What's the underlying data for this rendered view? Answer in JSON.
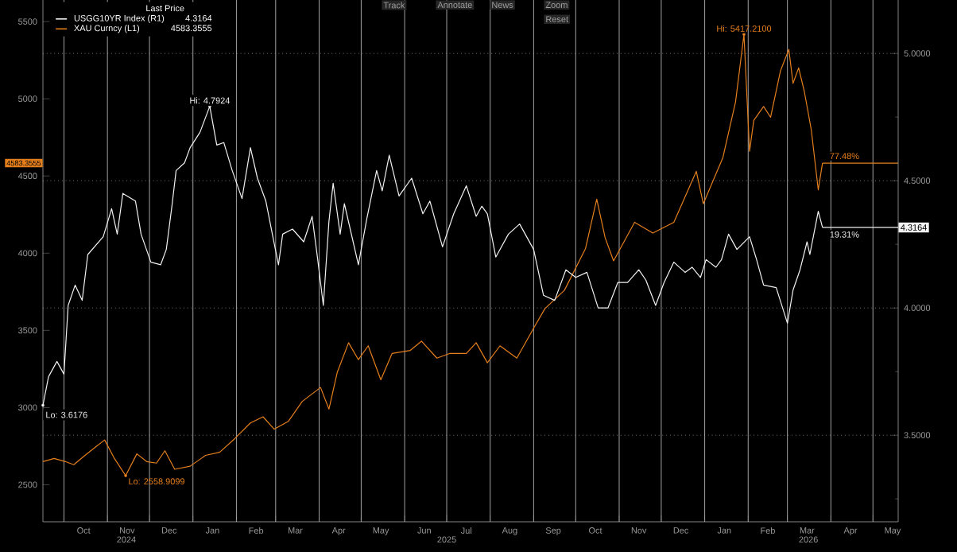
{
  "chart_data": {
    "type": "line",
    "legend_title": "Last Price",
    "legend": "top left",
    "grid": true,
    "xlim": [
      "2024-09-16",
      "2026-05-19"
    ],
    "xticks": [
      {
        "value": "2024-10-01",
        "label": null
      },
      {
        "value": "2024-10-15",
        "label": "Oct"
      },
      {
        "value": "2024-11-01",
        "label": null
      },
      {
        "value": "2024-11-15",
        "label": "Nov"
      },
      {
        "value": "2024-12-01",
        "label": null
      },
      {
        "value": "2024-12-15",
        "label": "Dec"
      },
      {
        "value": "2025-01-01",
        "label": null
      },
      {
        "value": "2025-01-15",
        "label": "Jan"
      },
      {
        "value": "2025-02-01",
        "label": null
      },
      {
        "value": "2025-02-15",
        "label": "Feb"
      },
      {
        "value": "2025-03-01",
        "label": null
      },
      {
        "value": "2025-03-15",
        "label": "Mar"
      },
      {
        "value": "2025-04-01",
        "label": null
      },
      {
        "value": "2025-04-15",
        "label": "Apr"
      },
      {
        "value": "2025-05-01",
        "label": null
      },
      {
        "value": "2025-05-15",
        "label": "May"
      },
      {
        "value": "2025-06-01",
        "label": null
      },
      {
        "value": "2025-06-15",
        "label": "Jun"
      },
      {
        "value": "2025-07-01",
        "label": null
      },
      {
        "value": "2025-07-15",
        "label": "Jul"
      },
      {
        "value": "2025-08-01",
        "label": null
      },
      {
        "value": "2025-08-15",
        "label": "Aug"
      },
      {
        "value": "2025-09-01",
        "label": null
      },
      {
        "value": "2025-09-15",
        "label": "Sep"
      },
      {
        "value": "2025-10-01",
        "label": null
      },
      {
        "value": "2025-10-15",
        "label": "Oct"
      },
      {
        "value": "2025-11-01",
        "label": null
      },
      {
        "value": "2025-11-15",
        "label": "Nov"
      },
      {
        "value": "2025-12-01",
        "label": null
      },
      {
        "value": "2025-12-15",
        "label": "Dec"
      },
      {
        "value": "2026-01-01",
        "label": null
      },
      {
        "value": "2026-01-15",
        "label": "Jan"
      },
      {
        "value": "2026-02-01",
        "label": null
      },
      {
        "value": "2026-02-15",
        "label": "Feb"
      },
      {
        "value": "2026-03-01",
        "label": null
      },
      {
        "value": "2026-03-15",
        "label": "Mar"
      },
      {
        "value": "2026-04-01",
        "label": null
      },
      {
        "value": "2026-04-15",
        "label": "Apr"
      },
      {
        "value": "2026-05-01",
        "label": null
      },
      {
        "value": "2026-05-15",
        "label": "May"
      }
    ],
    "ylim": [
      2260,
      5640
    ],
    "yticks": [
      2500,
      3000,
      3500,
      4000,
      4500,
      5000,
      5500
    ],
    "y2lim": [
      3.16,
      5.21
    ],
    "y2ticks": [
      {
        "value": 3.25,
        "label": null
      },
      {
        "value": 3.5,
        "label": "3.5000"
      },
      {
        "value": 3.75,
        "label": null
      },
      {
        "value": 4.0,
        "label": "4.0000"
      },
      {
        "value": 4.25,
        "label": null
      },
      {
        "value": 4.5,
        "label": "4.5000"
      },
      {
        "value": 4.75,
        "label": null
      },
      {
        "value": 5.0,
        "label": "5.0000"
      }
    ],
    "series": [
      {
        "name": "USGG10YR Index  (R1)",
        "color": "#f2f2f2",
        "axis": "y2",
        "x": [
          "2024-09-16",
          "2024-09-20",
          "2024-09-26",
          "2024-10-01",
          "2024-10-04",
          "2024-10-09",
          "2024-10-14",
          "2024-10-18",
          "2024-10-29",
          "2024-11-04",
          "2024-11-08",
          "2024-11-12",
          "2024-11-21",
          "2024-11-25",
          "2024-12-02",
          "2024-12-09",
          "2024-12-13",
          "2024-12-17",
          "2024-12-20",
          "2024-12-26",
          "2024-12-30",
          "2025-01-06",
          "2025-01-13",
          "2025-01-18",
          "2025-01-23",
          "2025-01-29",
          "2025-02-05",
          "2025-02-11",
          "2025-02-16",
          "2025-02-22",
          "2025-02-27",
          "2025-03-03",
          "2025-03-06",
          "2025-03-13",
          "2025-03-21",
          "2025-03-27",
          "2025-03-31",
          "2025-04-04",
          "2025-04-08",
          "2025-04-11",
          "2025-04-16",
          "2025-04-19",
          "2025-04-29",
          "2025-05-05",
          "2025-05-12",
          "2025-05-16",
          "2025-05-21",
          "2025-05-28",
          "2025-06-06",
          "2025-06-14",
          "2025-06-19",
          "2025-06-28",
          "2025-07-06",
          "2025-07-15",
          "2025-07-22",
          "2025-07-26",
          "2025-07-30",
          "2025-08-05",
          "2025-08-14",
          "2025-08-22",
          "2025-09-01",
          "2025-09-08",
          "2025-09-16",
          "2025-09-24",
          "2025-10-01",
          "2025-10-09",
          "2025-10-17",
          "2025-10-24",
          "2025-10-31",
          "2025-11-07",
          "2025-11-15",
          "2025-11-20",
          "2025-11-27",
          "2025-12-03",
          "2025-12-10",
          "2025-12-18",
          "2025-12-23",
          "2025-12-29",
          "2026-01-02",
          "2026-01-09",
          "2026-01-13",
          "2026-01-18",
          "2026-01-24",
          "2026-02-02",
          "2026-02-07",
          "2026-02-12",
          "2026-02-21",
          "2026-03-01",
          "2026-03-05",
          "2026-03-10",
          "2026-03-15",
          "2026-03-17",
          "2026-03-23",
          "2026-03-26"
        ],
        "values": [
          3.6176,
          3.73,
          3.79,
          3.74,
          4.01,
          4.09,
          4.03,
          4.21,
          4.28,
          4.39,
          4.29,
          4.45,
          4.42,
          4.29,
          4.18,
          4.17,
          4.23,
          4.4,
          4.54,
          4.57,
          4.63,
          4.69,
          4.7924,
          4.64,
          4.65,
          4.54,
          4.43,
          4.63,
          4.51,
          4.42,
          4.28,
          4.17,
          4.29,
          4.31,
          4.26,
          4.36,
          4.19,
          4.01,
          4.34,
          4.49,
          4.29,
          4.41,
          4.17,
          4.35,
          4.54,
          4.46,
          4.6,
          4.44,
          4.51,
          4.37,
          4.42,
          4.24,
          4.37,
          4.48,
          4.36,
          4.4,
          4.37,
          4.2,
          4.29,
          4.33,
          4.23,
          4.05,
          4.03,
          4.15,
          4.12,
          4.14,
          4.0,
          4.0,
          4.1,
          4.1,
          4.15,
          4.11,
          4.01,
          4.1,
          4.18,
          4.14,
          4.16,
          4.12,
          4.19,
          4.16,
          4.19,
          4.29,
          4.23,
          4.28,
          4.19,
          4.09,
          4.08,
          3.94,
          4.07,
          4.15,
          4.26,
          4.21,
          4.38,
          4.3164
        ]
      },
      {
        "name": "XAU Curncy  (L1)",
        "color": "#e57f1c",
        "x": [
          "2024-09-16",
          "2024-09-24",
          "2024-10-02",
          "2024-10-08",
          "2024-10-16",
          "2024-10-23",
          "2024-10-30",
          "2024-11-06",
          "2024-11-14",
          "2024-11-22",
          "2024-11-29",
          "2024-12-06",
          "2024-12-12",
          "2024-12-19",
          "2024-12-30",
          "2025-01-10",
          "2025-01-20",
          "2025-01-31",
          "2025-02-11",
          "2025-02-20",
          "2025-02-28",
          "2025-03-10",
          "2025-03-20",
          "2025-04-02",
          "2025-04-08",
          "2025-04-14",
          "2025-04-22",
          "2025-04-29",
          "2025-05-06",
          "2025-05-15",
          "2025-05-23",
          "2025-06-05",
          "2025-06-13",
          "2025-06-24",
          "2025-07-03",
          "2025-07-15",
          "2025-07-22",
          "2025-07-30",
          "2025-08-08",
          "2025-08-20",
          "2025-09-02",
          "2025-09-09",
          "2025-09-23",
          "2025-10-08",
          "2025-10-16",
          "2025-10-22",
          "2025-10-28",
          "2025-11-12",
          "2025-11-25",
          "2025-12-10",
          "2025-12-26",
          "2025-12-31",
          "2026-01-14",
          "2026-01-23",
          "2026-01-29",
          "2026-02-02",
          "2026-02-05",
          "2026-02-12",
          "2026-02-17",
          "2026-02-24",
          "2026-03-02",
          "2026-03-05",
          "2026-03-09",
          "2026-03-13",
          "2026-03-18",
          "2026-03-23",
          "2026-03-26"
        ],
        "values": [
          2650,
          2670,
          2650,
          2630,
          2690,
          2740,
          2790,
          2670,
          2558.9099,
          2700,
          2650,
          2640,
          2720,
          2600,
          2620,
          2690,
          2710,
          2800,
          2900,
          2940,
          2860,
          2910,
          3040,
          3130,
          2990,
          3230,
          3420,
          3310,
          3400,
          3180,
          3350,
          3370,
          3430,
          3320,
          3350,
          3350,
          3420,
          3290,
          3400,
          3320,
          3530,
          3640,
          3760,
          4030,
          4350,
          4100,
          3950,
          4200,
          4130,
          4200,
          4530,
          4320,
          4620,
          4980,
          5417.21,
          4660,
          4860,
          4950,
          4880,
          5180,
          5320,
          5100,
          5200,
          5050,
          4800,
          4410,
          4583.3555
        ]
      }
    ],
    "ref_lines": [
      {
        "axis": "y2",
        "value": 4.3164,
        "label": "4.3164",
        "color": "#f2f2f2"
      },
      {
        "axis": "y",
        "value": 4583.3555,
        "color": "#e57f1c"
      }
    ],
    "annotations": [
      "19.31%",
      "77.48%",
      "4.3164",
      "4583.3555",
      "4583.3555",
      "Hi: 4.7924",
      "Lo: 3.6176",
      {
        "text": "Hi: 5417.2100",
        "x": "2026-01-29",
        "y": 5417.21
      },
      {
        "text": "Lo: 2558.9099",
        "x": "2024-11-14",
        "y": 2558.9099
      },
      "2024",
      "2025",
      "2026",
      "Track",
      "Annotate",
      "News",
      "Zoom",
      "Reset"
    ]
  }
}
